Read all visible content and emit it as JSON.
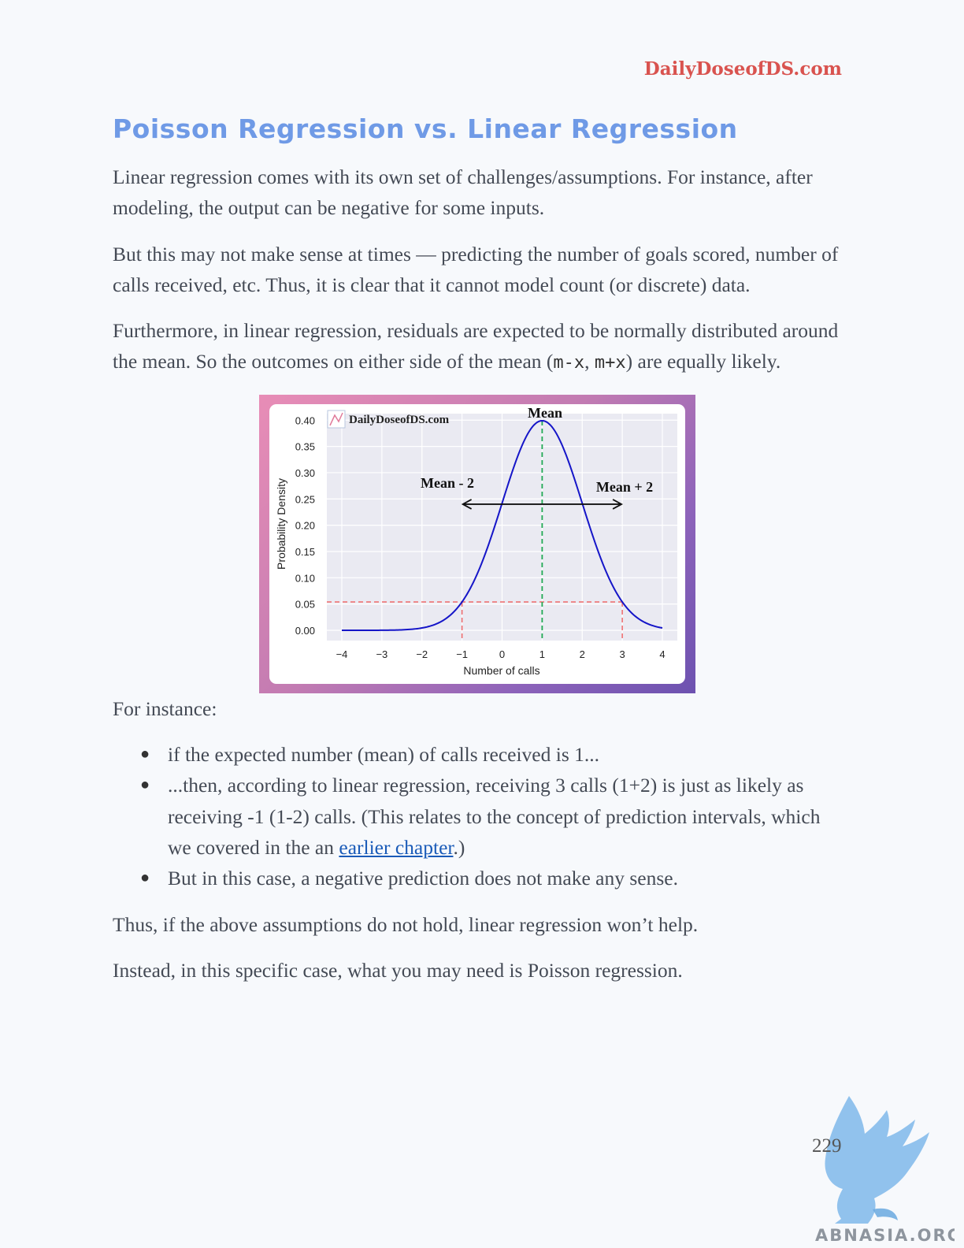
{
  "header": {
    "site": "DailyDoseofDS.com"
  },
  "title": "Poisson Regression vs. Linear Regression",
  "paragraphs": {
    "p1": "Linear regression comes with its own set of challenges/assumptions. For instance, after modeling, the output can be negative for some inputs.",
    "p2": "But this may not make sense at times — predicting the number of goals scored, number of calls received, etc. Thus, it is clear that it cannot model count (or discrete) data.",
    "p3_before": "Furthermore, in linear regression, residuals are expected to be normally distributed around the mean. So the outcomes on either side of the mean (",
    "p3_code1": "m-x",
    "p3_sep": ", ",
    "p3_code2": "m+x",
    "p3_after": ") are equally likely.",
    "for_instance": "For instance:",
    "thus": "Thus, if the above assumptions do not hold, linear regression won’t help.",
    "instead": "Instead, in this specific case, what you may need is Poisson regression."
  },
  "bullets": {
    "b1": "if the expected number (mean) of calls received is 1...",
    "b2_before": "...then, according to linear regression, receiving 3 calls (1+2) is just as likely as receiving -1 (1-2) calls. (This relates to the concept of prediction intervals, which we covered in the an ",
    "b2_link": "earlier chapter",
    "b2_after": ".)",
    "b3": "But in this case, a negative prediction does not make any sense."
  },
  "chart_data": {
    "type": "line",
    "watermark": "DailyDoseofDS.com",
    "xlabel": "Number of calls",
    "ylabel": "Probability Density",
    "xlim": [
      -4,
      4
    ],
    "ylim": [
      0,
      0.4
    ],
    "x_ticks": [
      "−4",
      "−3",
      "−2",
      "−1",
      "0",
      "1",
      "2",
      "3",
      "4"
    ],
    "y_ticks": [
      "0.00",
      "0.05",
      "0.10",
      "0.15",
      "0.20",
      "0.25",
      "0.30",
      "0.35",
      "0.40"
    ],
    "grid": true,
    "series": [
      {
        "distribution": "normal",
        "mean": 1,
        "std": 1,
        "color": "#1515c8"
      }
    ],
    "annotations": {
      "mean_label": "Mean",
      "left_label": "Mean - 2",
      "right_label": "Mean + 2",
      "mean_x": 1,
      "left_x": -1,
      "right_x": 3,
      "density_at_pm2": 0.054,
      "arrow_y": 0.24,
      "mean_line_color": "#22aa55",
      "dashed_color": "#f06a6a"
    }
  },
  "page_number": "229",
  "watermark_text": "ABNASIA.ORG"
}
